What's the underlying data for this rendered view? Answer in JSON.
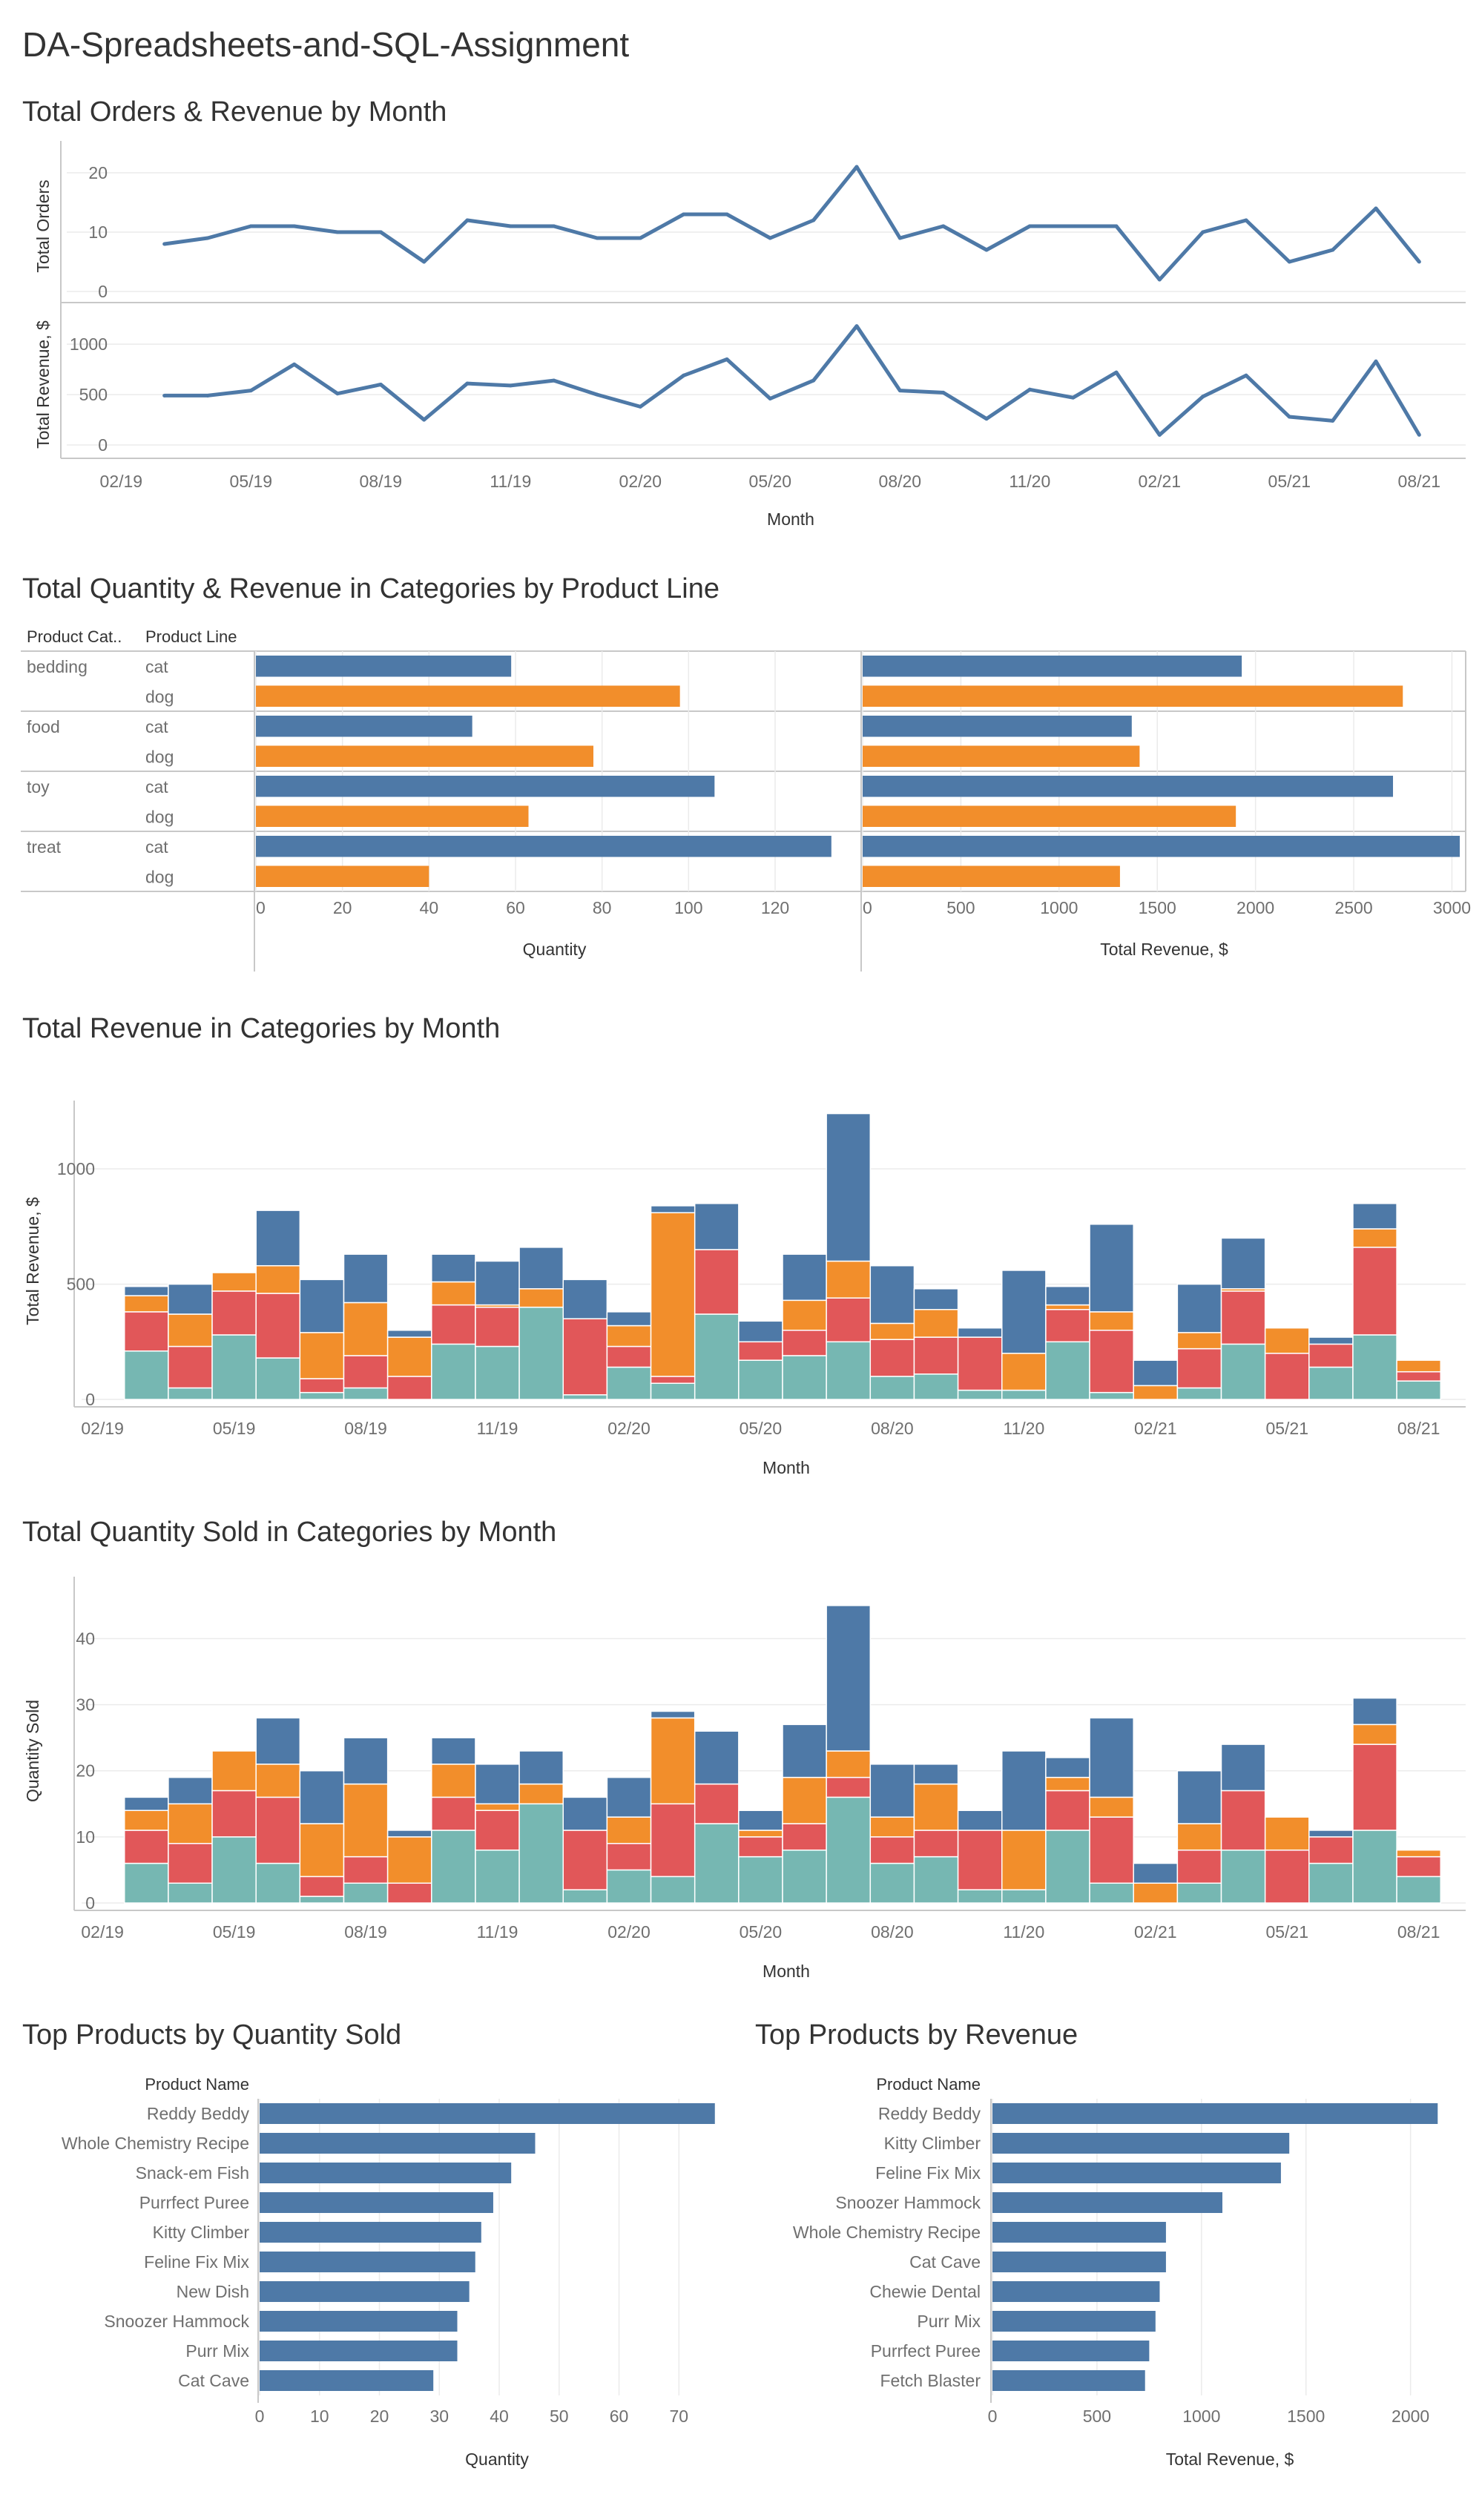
{
  "dashboard": {
    "title": "DA-Spreadsheets-and-SQL-Assignment"
  },
  "palette": {
    "blue": "#4e79a7",
    "orange": "#f28e2b",
    "red": "#e15759",
    "teal": "#76b7b2"
  },
  "chart_data": [
    {
      "id": "orders_revenue_month",
      "type": "line",
      "title": "Total Orders & Revenue by Month",
      "xlabel": "Month",
      "x": [
        "03/19",
        "04/19",
        "05/19",
        "06/19",
        "07/19",
        "08/19",
        "09/19",
        "10/19",
        "11/19",
        "12/19",
        "01/20",
        "02/20",
        "03/20",
        "04/20",
        "05/20",
        "06/20",
        "07/20",
        "08/20",
        "09/20",
        "10/20",
        "11/20",
        "12/20",
        "01/21",
        "02/21",
        "03/21",
        "04/21",
        "05/21",
        "06/21",
        "07/21",
        "08/21"
      ],
      "x_ticks": [
        "02/19",
        "05/19",
        "08/19",
        "11/19",
        "02/20",
        "05/20",
        "08/20",
        "11/20",
        "02/21",
        "05/21",
        "08/21"
      ],
      "series": [
        {
          "name": "Total Orders",
          "ylabel": "Total Orders",
          "ylim": [
            0,
            22
          ],
          "y_ticks": [
            0,
            10,
            20
          ],
          "values": [
            8,
            9,
            11,
            11,
            10,
            10,
            5,
            12,
            11,
            11,
            9,
            9,
            13,
            13,
            9,
            12,
            21,
            9,
            11,
            7,
            11,
            11,
            11,
            2,
            10,
            12,
            5,
            7,
            14,
            5
          ]
        },
        {
          "name": "Total Revenue, $",
          "ylabel": "Total Revenue, $",
          "ylim": [
            0,
            1200
          ],
          "y_ticks": [
            0,
            500,
            1000
          ],
          "values": [
            490,
            490,
            540,
            800,
            510,
            600,
            250,
            610,
            590,
            640,
            500,
            380,
            690,
            850,
            460,
            640,
            1180,
            540,
            520,
            260,
            550,
            470,
            720,
            100,
            480,
            690,
            280,
            240,
            830,
            100
          ]
        }
      ],
      "color": "#4e79a7",
      "grid": true
    },
    {
      "id": "qty_rev_category_line",
      "type": "bar",
      "title": "Total Quantity & Revenue in Categories by Product Line",
      "row_headers": [
        "Product Cat..",
        "Product Line"
      ],
      "categories": [
        "bedding",
        "food",
        "toy",
        "treat"
      ],
      "lines": [
        "cat",
        "dog"
      ],
      "series": [
        {
          "name": "Quantity",
          "xlabel": "Quantity",
          "xlim": [
            0,
            138
          ],
          "x_ticks": [
            0,
            20,
            40,
            60,
            80,
            100,
            120
          ],
          "values": [
            [
              59,
              98
            ],
            [
              50,
              78
            ],
            [
              106,
              63
            ],
            [
              133,
              40
            ]
          ]
        },
        {
          "name": "Total Revenue, $",
          "xlabel": "Total Revenue, $",
          "xlim": [
            0,
            3070
          ],
          "x_ticks": [
            0,
            500,
            1000,
            1500,
            2000,
            2500,
            3000
          ],
          "values": [
            [
              1930,
              2750
            ],
            [
              1370,
              1410
            ],
            [
              2700,
              1900
            ],
            [
              3040,
              1310
            ]
          ]
        }
      ],
      "line_colors": {
        "cat": "#4e79a7",
        "dog": "#f28e2b"
      }
    },
    {
      "id": "revenue_category_month",
      "type": "bar",
      "stacked": true,
      "title": "Total Revenue in Categories by Month",
      "xlabel": "Month",
      "ylabel": "Total Revenue, $",
      "ylim": [
        0,
        1200
      ],
      "y_ticks": [
        0,
        500,
        1000
      ],
      "x_ticks": [
        "02/19",
        "05/19",
        "08/19",
        "11/19",
        "02/20",
        "05/20",
        "08/20",
        "11/20",
        "02/21",
        "05/21",
        "08/21"
      ],
      "stack_order": [
        "teal",
        "red",
        "orange",
        "blue"
      ],
      "x": [
        "03/19",
        "04/19",
        "05/19",
        "06/19",
        "07/19",
        "08/19",
        "09/19",
        "10/19",
        "11/19",
        "12/19",
        "01/20",
        "02/20",
        "03/20",
        "04/20",
        "05/20",
        "06/20",
        "07/20",
        "08/20",
        "09/20",
        "10/20",
        "11/20",
        "12/20",
        "01/21",
        "02/21",
        "03/21",
        "04/21",
        "05/21",
        "06/21",
        "07/21",
        "08/21"
      ],
      "values": [
        [
          210,
          170,
          70,
          40
        ],
        [
          50,
          180,
          140,
          130
        ],
        [
          280,
          190,
          80,
          0
        ],
        [
          180,
          280,
          120,
          240
        ],
        [
          30,
          60,
          200,
          230
        ],
        [
          50,
          140,
          230,
          210
        ],
        [
          0,
          100,
          170,
          30
        ],
        [
          240,
          170,
          100,
          120
        ],
        [
          230,
          170,
          10,
          190
        ],
        [
          400,
          0,
          80,
          180
        ],
        [
          20,
          330,
          0,
          170
        ],
        [
          140,
          90,
          90,
          60
        ],
        [
          70,
          30,
          710,
          30
        ],
        [
          370,
          280,
          0,
          200
        ],
        [
          170,
          80,
          0,
          90
        ],
        [
          190,
          110,
          130,
          200
        ],
        [
          250,
          190,
          160,
          640
        ],
        [
          100,
          160,
          70,
          250
        ],
        [
          110,
          160,
          120,
          90
        ],
        [
          40,
          230,
          0,
          40
        ],
        [
          40,
          0,
          160,
          360
        ],
        [
          250,
          140,
          20,
          80
        ],
        [
          30,
          270,
          80,
          380
        ],
        [
          0,
          0,
          60,
          110
        ],
        [
          50,
          170,
          70,
          210
        ],
        [
          240,
          230,
          10,
          220
        ],
        [
          0,
          200,
          110,
          0
        ],
        [
          140,
          100,
          0,
          30
        ],
        [
          280,
          380,
          80,
          110
        ],
        [
          80,
          40,
          50,
          0
        ]
      ],
      "grid": true
    },
    {
      "id": "quantity_category_month",
      "type": "bar",
      "stacked": true,
      "title": "Total Quantity Sold in Categories by Month",
      "xlabel": "Month",
      "ylabel": "Quantity Sold",
      "ylim": [
        0,
        46
      ],
      "y_ticks": [
        0,
        10,
        20,
        30,
        40
      ],
      "x_ticks": [
        "02/19",
        "05/19",
        "08/19",
        "11/19",
        "02/20",
        "05/20",
        "08/20",
        "11/20",
        "02/21",
        "05/21",
        "08/21"
      ],
      "stack_order": [
        "teal",
        "red",
        "orange",
        "blue"
      ],
      "x": [
        "03/19",
        "04/19",
        "05/19",
        "06/19",
        "07/19",
        "08/19",
        "09/19",
        "10/19",
        "11/19",
        "12/19",
        "01/20",
        "02/20",
        "03/20",
        "04/20",
        "05/20",
        "06/20",
        "07/20",
        "08/20",
        "09/20",
        "10/20",
        "11/20",
        "12/20",
        "01/21",
        "02/21",
        "03/21",
        "04/21",
        "05/21",
        "06/21",
        "07/21",
        "08/21"
      ],
      "values": [
        [
          6,
          5,
          3,
          2
        ],
        [
          3,
          6,
          6,
          4
        ],
        [
          10,
          7,
          6,
          0
        ],
        [
          6,
          10,
          5,
          7
        ],
        [
          1,
          3,
          8,
          8
        ],
        [
          3,
          4,
          11,
          7
        ],
        [
          0,
          3,
          7,
          1
        ],
        [
          11,
          5,
          5,
          4
        ],
        [
          8,
          6,
          1,
          6
        ],
        [
          15,
          0,
          3,
          5
        ],
        [
          2,
          9,
          0,
          5
        ],
        [
          5,
          4,
          4,
          6
        ],
        [
          4,
          11,
          13,
          1
        ],
        [
          12,
          6,
          0,
          8
        ],
        [
          7,
          3,
          1,
          3
        ],
        [
          8,
          4,
          7,
          8
        ],
        [
          16,
          3,
          4,
          22
        ],
        [
          6,
          4,
          3,
          8
        ],
        [
          7,
          4,
          7,
          3
        ],
        [
          2,
          9,
          0,
          3
        ],
        [
          2,
          0,
          9,
          12
        ],
        [
          11,
          6,
          2,
          3
        ],
        [
          3,
          10,
          3,
          12
        ],
        [
          0,
          0,
          3,
          3
        ],
        [
          3,
          5,
          4,
          8
        ],
        [
          8,
          9,
          0,
          7
        ],
        [
          0,
          8,
          5,
          0
        ],
        [
          6,
          4,
          0,
          1
        ],
        [
          11,
          13,
          3,
          4
        ],
        [
          4,
          3,
          1,
          0
        ]
      ],
      "grid": true
    },
    {
      "id": "top_products_quantity",
      "type": "bar",
      "orientation": "horizontal",
      "title": "Top Products by Quantity Sold",
      "row_header": "Product Name",
      "xlabel": "Quantity",
      "xlim": [
        0,
        79
      ],
      "x_ticks": [
        0,
        10,
        20,
        30,
        40,
        50,
        60,
        70
      ],
      "categories": [
        "Reddy Beddy",
        "Whole Chemistry Recipe",
        "Snack-em Fish",
        "Purrfect Puree",
        "Kitty Climber",
        "Feline Fix Mix",
        "New Dish",
        "Snoozer Hammock",
        "Purr Mix",
        "Cat Cave"
      ],
      "values": [
        76,
        46,
        42,
        39,
        37,
        36,
        35,
        33,
        33,
        29
      ],
      "color": "#4e79a7"
    },
    {
      "id": "top_products_revenue",
      "type": "bar",
      "orientation": "horizontal",
      "title": "Top Products by Revenue",
      "row_header": "Product Name",
      "xlabel": "Total Revenue, $",
      "xlim": [
        0,
        2200
      ],
      "x_ticks": [
        0,
        500,
        1000,
        1500,
        2000
      ],
      "categories": [
        "Reddy Beddy",
        "Kitty Climber",
        "Feline Fix Mix",
        "Snoozer Hammock",
        "Whole Chemistry Recipe",
        "Cat Cave",
        "Chewie Dental",
        "Purr Mix",
        "Purrfect Puree",
        "Fetch Blaster"
      ],
      "values": [
        2130,
        1420,
        1380,
        1100,
        830,
        830,
        800,
        780,
        750,
        730
      ],
      "color": "#4e79a7"
    }
  ]
}
